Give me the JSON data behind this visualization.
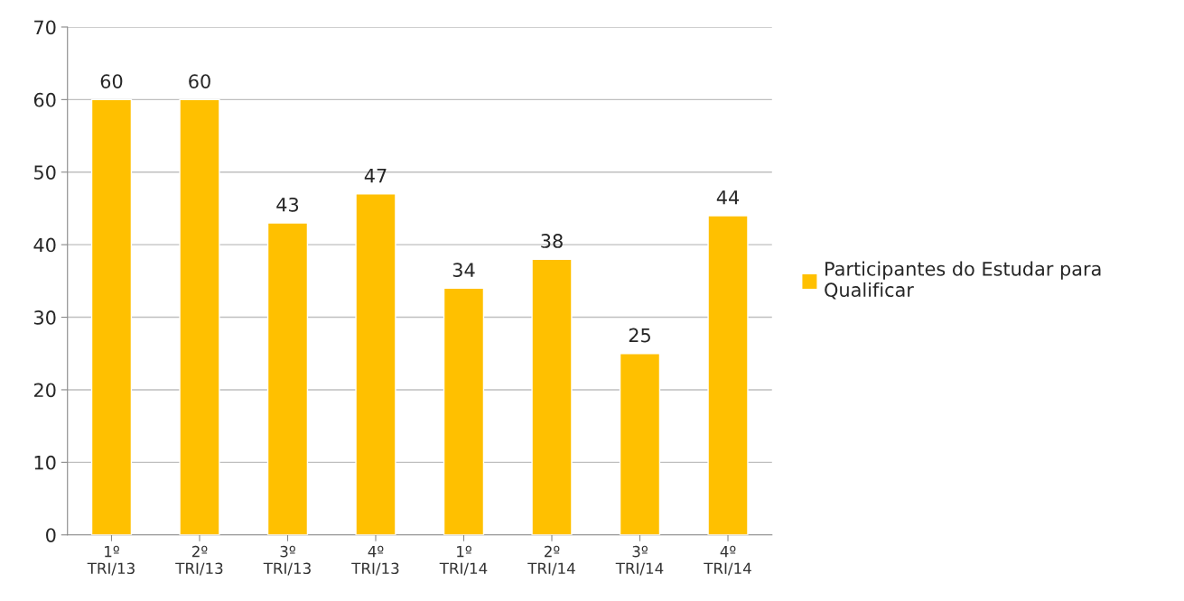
{
  "chart_data": {
    "type": "bar",
    "categories": [
      "1º\nTRI/13",
      "2º\nTRI/13",
      "3º\nTRI/13",
      "4º\nTRI/13",
      "1º\nTRI/14",
      "2º\nTRI/14",
      "3º\nTRI/14",
      "4º\nTRI/14"
    ],
    "series": [
      {
        "name": "Participantes do Estudar para Qualificar",
        "color": "#ffc000",
        "values": [
          60,
          60,
          43,
          47,
          34,
          38,
          25,
          44
        ]
      }
    ],
    "ylim": [
      0,
      70
    ],
    "yticks": [
      0,
      10,
      20,
      30,
      40,
      50,
      60,
      70
    ],
    "grid": "y",
    "legend": "right",
    "data_labels": true
  }
}
